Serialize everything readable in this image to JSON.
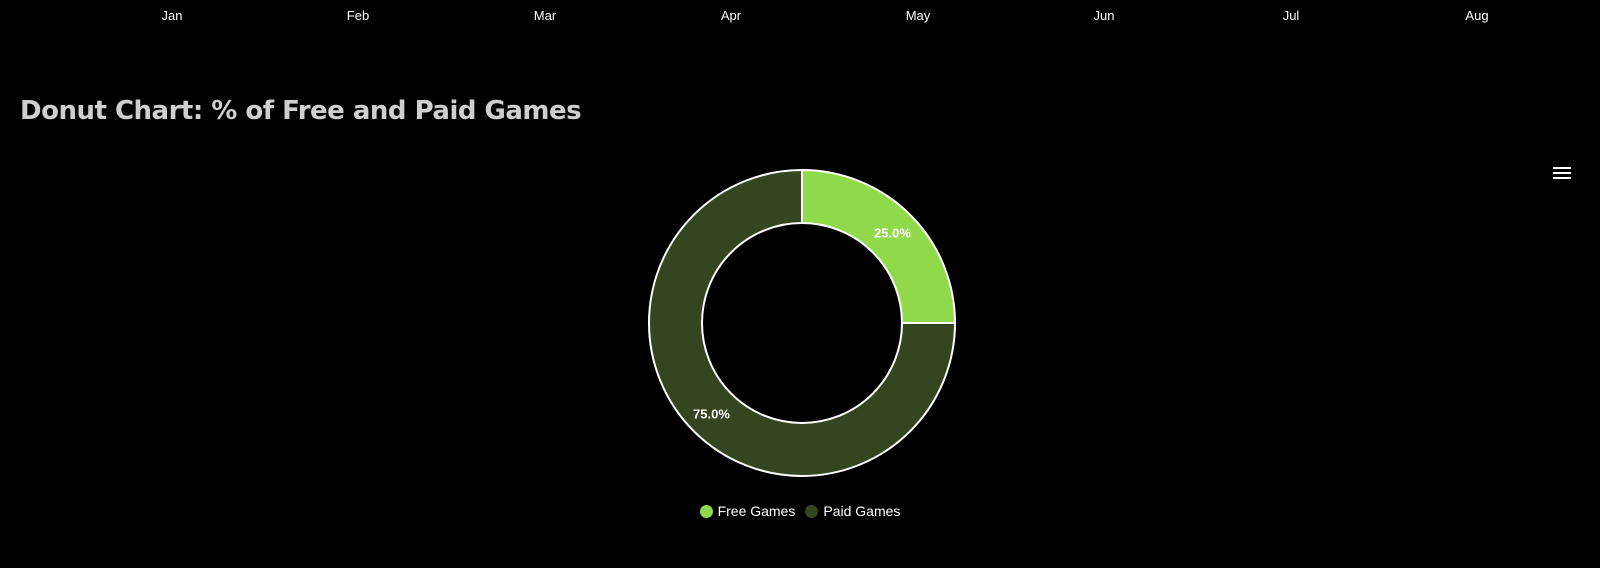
{
  "axis": {
    "months": [
      "Jan",
      "Feb",
      "Mar",
      "Apr",
      "May",
      "Jun",
      "Jul",
      "Aug"
    ]
  },
  "section": {
    "title": "Donut Chart: % of Free and Paid Games"
  },
  "toolbar": {
    "menu_icon": "hamburger-menu-icon"
  },
  "chart_data": {
    "type": "pie",
    "title": "",
    "categories": [
      "Free Games",
      "Paid Games"
    ],
    "values": [
      25.0,
      75.0
    ],
    "data_labels": [
      "25.0%",
      "75.0%"
    ],
    "colors": [
      "#8fd94b",
      "#334620"
    ],
    "border_color": "#ffffff",
    "legend_placement": "bottom"
  }
}
